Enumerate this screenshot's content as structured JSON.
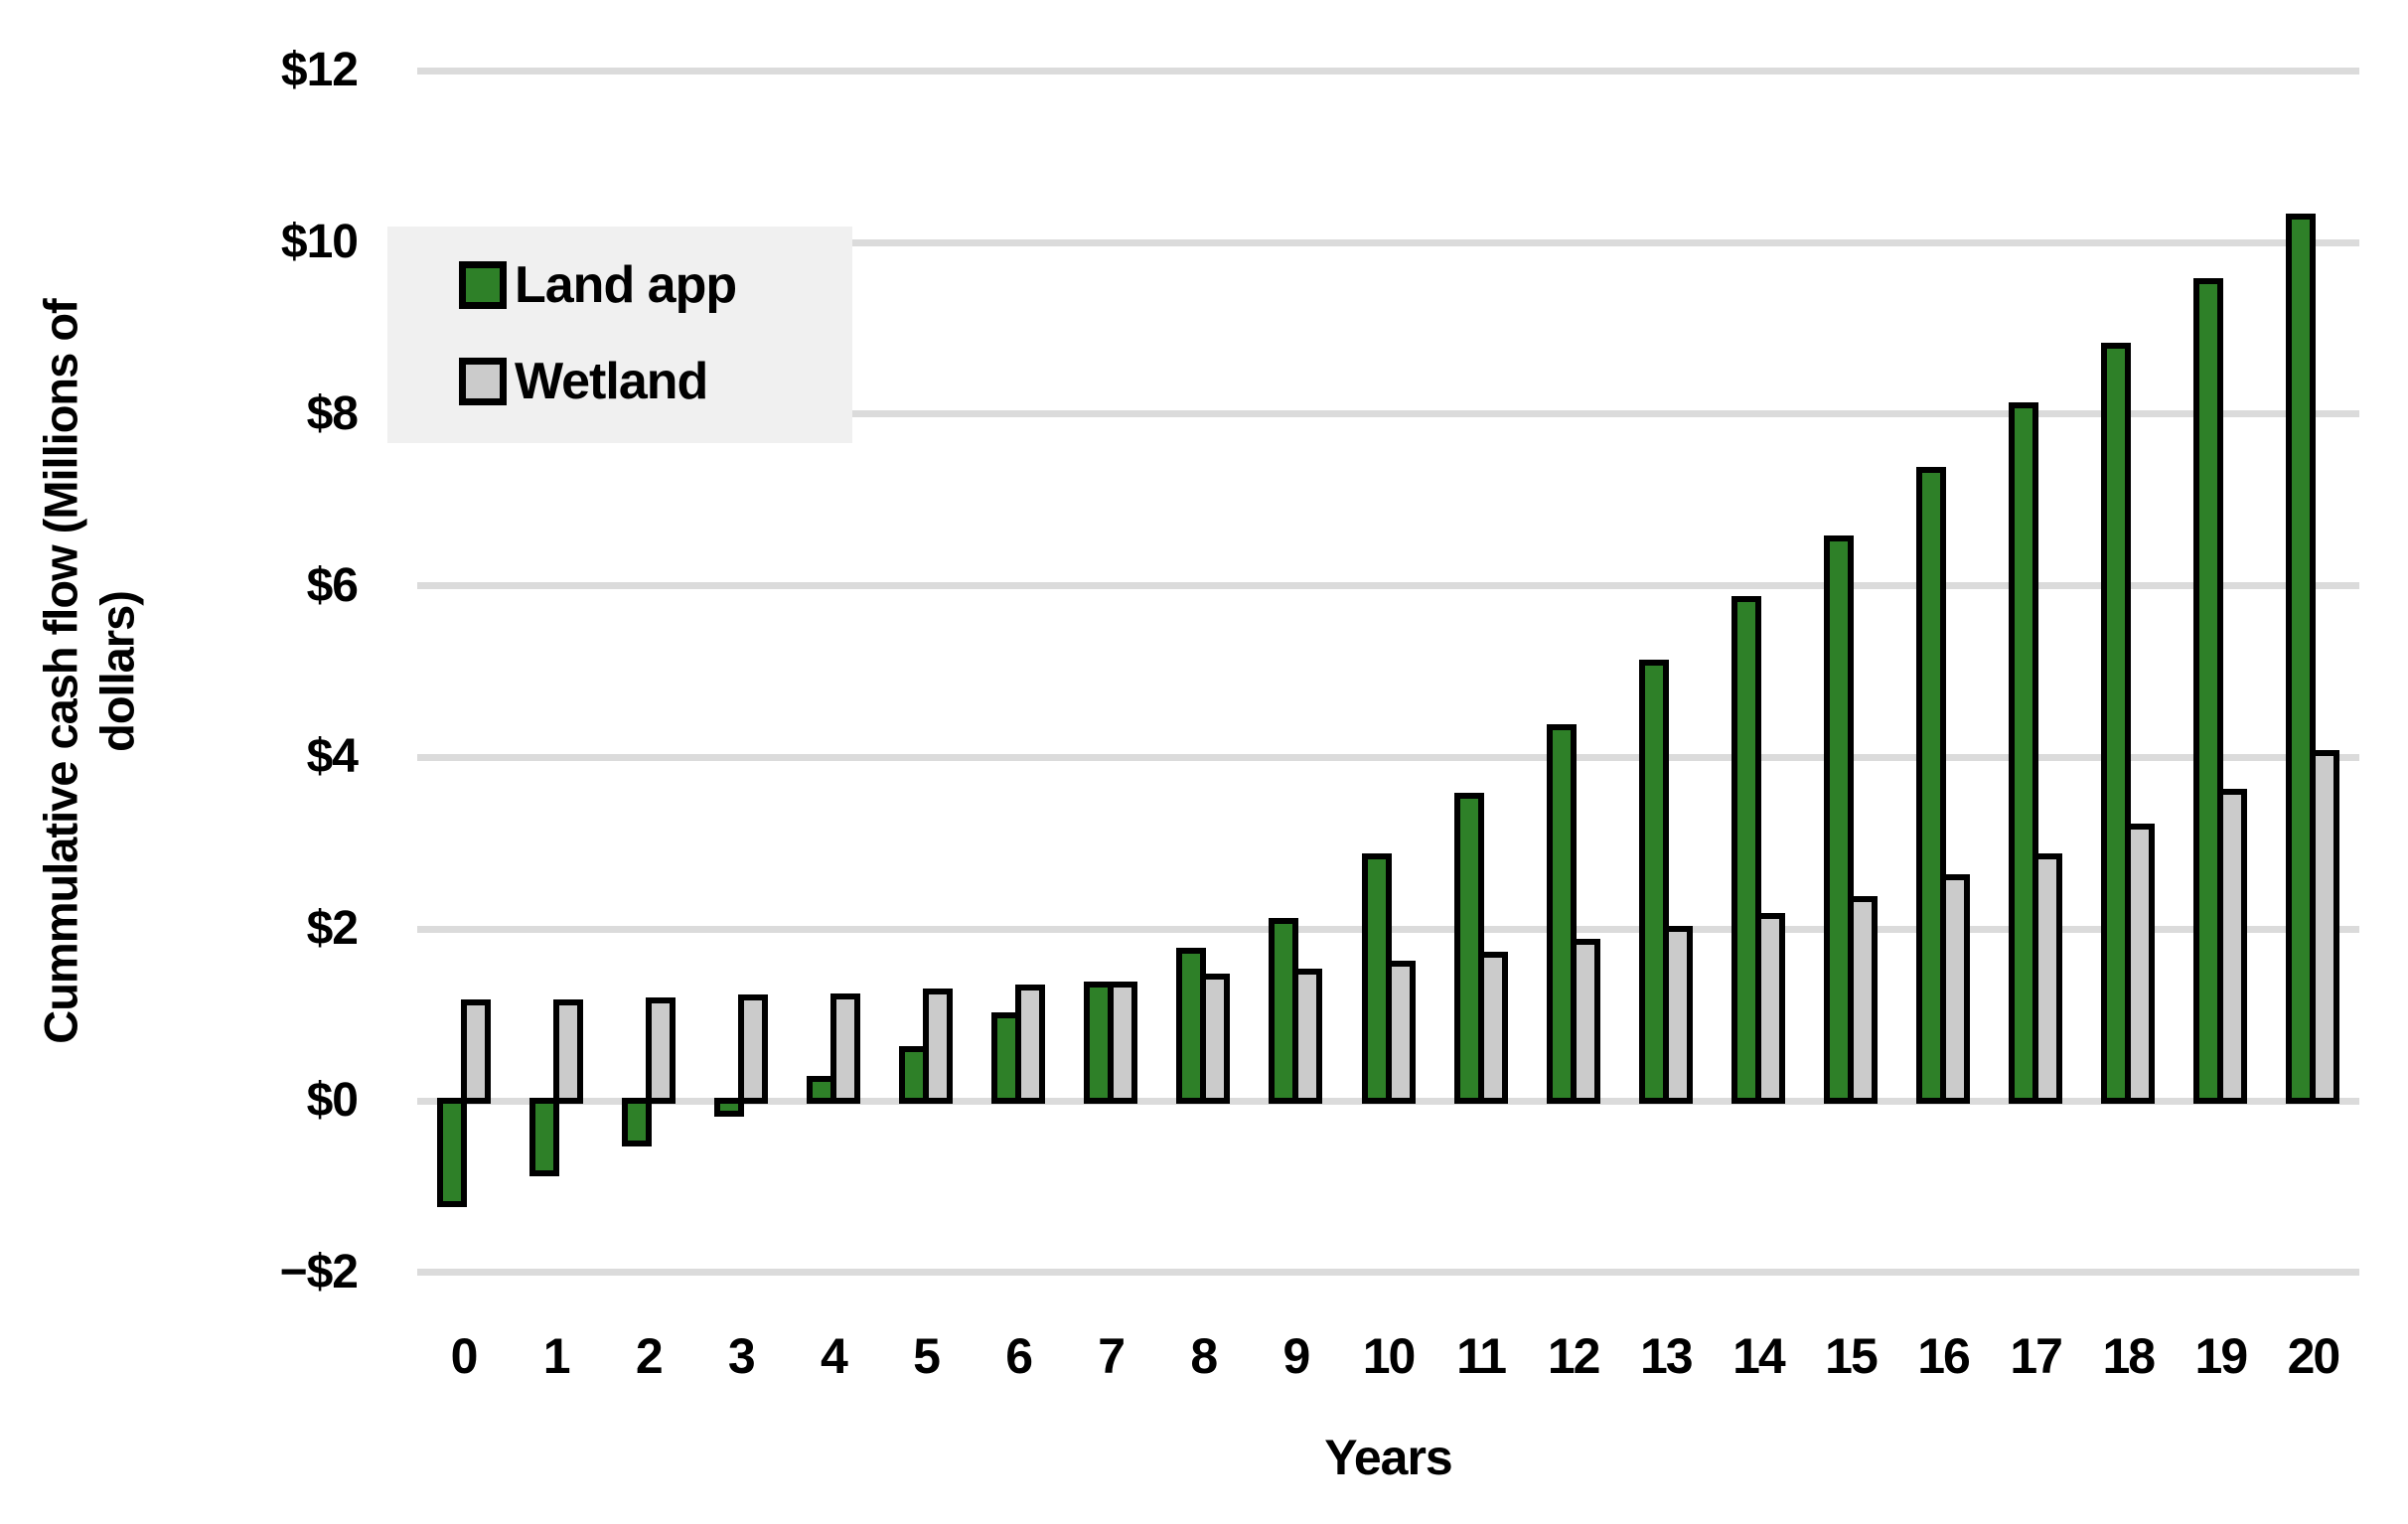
{
  "chart_data": {
    "type": "bar",
    "title": "",
    "xlabel": "Years",
    "ylabel": "Cummulative cash flow (Millions of dollars)",
    "ylabel_lines": [
      "Cummulative cash flow (Millions of",
      "dollars)"
    ],
    "categories": [
      "0",
      "1",
      "2",
      "3",
      "4",
      "5",
      "6",
      "7",
      "8",
      "9",
      "10",
      "11",
      "12",
      "13",
      "14",
      "15",
      "16",
      "17",
      "18",
      "19",
      "20"
    ],
    "series": [
      {
        "name": "Land app",
        "color": "#2e8028",
        "values": [
          -1.2,
          -0.85,
          -0.5,
          -0.15,
          0.25,
          0.6,
          1.0,
          1.35,
          1.75,
          2.1,
          2.85,
          3.55,
          4.35,
          5.1,
          5.85,
          6.55,
          7.35,
          8.1,
          8.8,
          9.55,
          10.3
        ]
      },
      {
        "name": "Wetland",
        "color": "#cbcbcb",
        "values": [
          1.15,
          1.15,
          1.17,
          1.2,
          1.22,
          1.27,
          1.32,
          1.35,
          1.45,
          1.5,
          1.6,
          1.7,
          1.85,
          2.0,
          2.15,
          2.35,
          2.6,
          2.85,
          3.2,
          3.6,
          4.05
        ]
      }
    ],
    "ylim": [
      -2,
      12
    ],
    "yticks": [
      {
        "value": 12,
        "label": "$12"
      },
      {
        "value": 10,
        "label": "$10"
      },
      {
        "value": 8,
        "label": "$8"
      },
      {
        "value": 6,
        "label": "$6"
      },
      {
        "value": 4,
        "label": "$4"
      },
      {
        "value": 2,
        "label": "$2"
      },
      {
        "value": 0,
        "label": "$0"
      },
      {
        "value": -2,
        "label": "−$2"
      }
    ],
    "grid": "horizontal",
    "legend_position": "top-left-inside",
    "bar_outline_color": "#000000",
    "gridline_color": "#dbdbdb",
    "legend_background": "#f0f0f0"
  }
}
